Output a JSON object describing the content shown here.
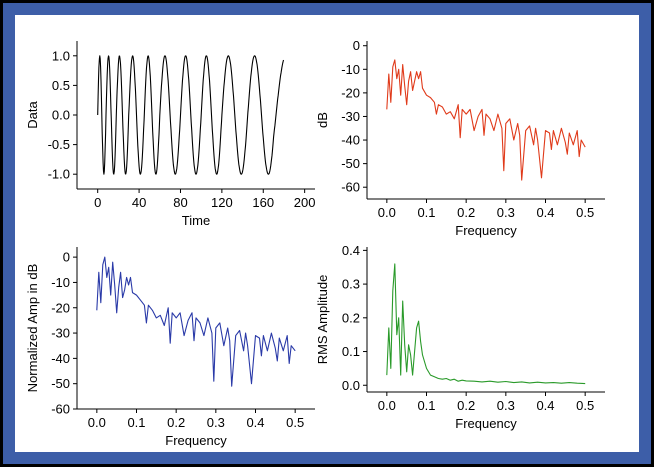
{
  "colors": {
    "frame": "#3d5ea8",
    "background": "#ffffff",
    "axis": "#000000"
  },
  "chart_data": [
    {
      "id": "time",
      "type": "line",
      "title": "",
      "xlabel": "Time",
      "ylabel": "Data",
      "xlim": [
        -20,
        210
      ],
      "ylim": [
        -1.25,
        1.25
      ],
      "xticks": [
        0,
        40,
        80,
        120,
        160,
        200
      ],
      "xtick_labels": [
        "0",
        "40",
        "80",
        "120",
        "160",
        "200"
      ],
      "yticks": [
        -1.0,
        -0.5,
        0.0,
        0.5,
        1.0
      ],
      "ytick_labels": [
        "-1.0",
        "-0.5",
        "0.0",
        "0.5",
        "1.0"
      ],
      "color": "#000000",
      "signal": {
        "description": "chirp, phase values at t = 0..180",
        "t": [
          0,
          8,
          18,
          30,
          45,
          60,
          80,
          100,
          120,
          145,
          170,
          180
        ],
        "phase_cycles": [
          0,
          1,
          2,
          3,
          4,
          5,
          6,
          7,
          8,
          9,
          9.94,
          10.2
        ]
      },
      "grid": false,
      "legend": "none"
    },
    {
      "id": "db",
      "type": "line",
      "title": "",
      "xlabel": "Frequency",
      "ylabel": "dB",
      "xlim": [
        -0.05,
        0.55
      ],
      "ylim": [
        -65,
        2
      ],
      "xticks": [
        0.0,
        0.1,
        0.2,
        0.3,
        0.4,
        0.5
      ],
      "xtick_labels": [
        "0.0",
        "0.1",
        "0.2",
        "0.3",
        "0.4",
        "0.5"
      ],
      "yticks": [
        -60,
        -50,
        -40,
        -30,
        -20,
        -10,
        0
      ],
      "ytick_labels": [
        "-60",
        "-50",
        "-40",
        "-30",
        "-20",
        "-10",
        "0"
      ],
      "color": "#e03a1a",
      "x": [
        0.0,
        0.005,
        0.01,
        0.015,
        0.02,
        0.025,
        0.03,
        0.035,
        0.04,
        0.045,
        0.05,
        0.055,
        0.06,
        0.065,
        0.07,
        0.075,
        0.08,
        0.085,
        0.09,
        0.1,
        0.11,
        0.12,
        0.125,
        0.13,
        0.14,
        0.15,
        0.16,
        0.17,
        0.18,
        0.185,
        0.19,
        0.2,
        0.21,
        0.22,
        0.23,
        0.24,
        0.245,
        0.25,
        0.26,
        0.27,
        0.28,
        0.29,
        0.295,
        0.3,
        0.31,
        0.32,
        0.33,
        0.335,
        0.34,
        0.35,
        0.36,
        0.37,
        0.375,
        0.38,
        0.39,
        0.4,
        0.41,
        0.415,
        0.42,
        0.43,
        0.44,
        0.45,
        0.455,
        0.46,
        0.47,
        0.48,
        0.485,
        0.49,
        0.5
      ],
      "y": [
        -27,
        -12,
        -24,
        -9,
        -6,
        -14,
        -10,
        -21,
        -8,
        -17,
        -25,
        -15,
        -11,
        -19,
        -15,
        -11,
        -14,
        -11,
        -18,
        -21,
        -22,
        -24,
        -29,
        -25,
        -26,
        -29,
        -28,
        -31,
        -25,
        -39,
        -27,
        -29,
        -27,
        -36,
        -30,
        -27,
        -38,
        -29,
        -31,
        -36,
        -29,
        -35,
        -53,
        -33,
        -31,
        -40,
        -33,
        -38,
        -57,
        -36,
        -34,
        -42,
        -35,
        -40,
        -56,
        -36,
        -37,
        -44,
        -36,
        -42,
        -35,
        -41,
        -46,
        -37,
        -42,
        -36,
        -47,
        -40,
        -43
      ],
      "grid": false,
      "legend": "none"
    },
    {
      "id": "norm",
      "type": "line",
      "title": "",
      "xlabel": "Frequency",
      "ylabel": "Normalized Amp in dB",
      "xlim": [
        -0.05,
        0.55
      ],
      "ylim": [
        -60,
        4
      ],
      "xticks": [
        0.0,
        0.1,
        0.2,
        0.3,
        0.4,
        0.5
      ],
      "xtick_labels": [
        "0.0",
        "0.1",
        "0.2",
        "0.3",
        "0.4",
        "0.5"
      ],
      "yticks": [
        -60,
        -50,
        -40,
        -30,
        -20,
        -10,
        0
      ],
      "ytick_labels": [
        "-60",
        "-50",
        "-40",
        "-30",
        "-20",
        "-10",
        "0"
      ],
      "color": "#2a3aa8",
      "x": [
        0.0,
        0.005,
        0.01,
        0.015,
        0.02,
        0.025,
        0.03,
        0.035,
        0.04,
        0.045,
        0.05,
        0.055,
        0.06,
        0.065,
        0.07,
        0.075,
        0.08,
        0.085,
        0.09,
        0.1,
        0.11,
        0.12,
        0.125,
        0.13,
        0.14,
        0.15,
        0.16,
        0.17,
        0.18,
        0.185,
        0.19,
        0.2,
        0.21,
        0.22,
        0.23,
        0.24,
        0.245,
        0.25,
        0.26,
        0.27,
        0.28,
        0.29,
        0.295,
        0.3,
        0.31,
        0.32,
        0.33,
        0.335,
        0.34,
        0.35,
        0.36,
        0.37,
        0.375,
        0.38,
        0.39,
        0.4,
        0.41,
        0.415,
        0.42,
        0.43,
        0.44,
        0.45,
        0.455,
        0.46,
        0.47,
        0.48,
        0.485,
        0.49,
        0.5
      ],
      "y": [
        -21,
        -6,
        -18,
        -3,
        0,
        -8,
        -4,
        -15,
        -2,
        -11,
        -22,
        -12,
        -6,
        -16,
        -13,
        -8,
        -11,
        -8,
        -14,
        -15,
        -17,
        -19,
        -26,
        -19,
        -21,
        -24,
        -23,
        -27,
        -20,
        -34,
        -22,
        -24,
        -22,
        -31,
        -25,
        -22,
        -33,
        -24,
        -26,
        -31,
        -24,
        -30,
        -49,
        -28,
        -26,
        -35,
        -28,
        -33,
        -51,
        -31,
        -29,
        -37,
        -30,
        -35,
        -50,
        -31,
        -32,
        -39,
        -31,
        -37,
        -30,
        -36,
        -41,
        -32,
        -37,
        -31,
        -42,
        -35,
        -37
      ],
      "grid": false,
      "legend": "none"
    },
    {
      "id": "rms",
      "type": "line",
      "title": "",
      "xlabel": "Frequency",
      "ylabel": "RMS Amplitude",
      "xlim": [
        -0.05,
        0.55
      ],
      "ylim": [
        -0.02,
        0.41
      ],
      "xticks": [
        0.0,
        0.1,
        0.2,
        0.3,
        0.4,
        0.5
      ],
      "xtick_labels": [
        "0.0",
        "0.1",
        "0.2",
        "0.3",
        "0.4",
        "0.5"
      ],
      "yticks": [
        0.0,
        0.1,
        0.2,
        0.3,
        0.4
      ],
      "ytick_labels": [
        "0.0",
        "0.1",
        "0.2",
        "0.3",
        "0.4"
      ],
      "color": "#2a9a2a",
      "x": [
        0.0,
        0.005,
        0.01,
        0.015,
        0.02,
        0.025,
        0.03,
        0.035,
        0.04,
        0.045,
        0.05,
        0.055,
        0.06,
        0.065,
        0.07,
        0.075,
        0.08,
        0.085,
        0.09,
        0.1,
        0.11,
        0.12,
        0.13,
        0.14,
        0.15,
        0.16,
        0.17,
        0.18,
        0.19,
        0.2,
        0.22,
        0.24,
        0.26,
        0.28,
        0.3,
        0.32,
        0.34,
        0.36,
        0.38,
        0.4,
        0.42,
        0.44,
        0.46,
        0.48,
        0.5
      ],
      "y": [
        0.03,
        0.17,
        0.05,
        0.28,
        0.36,
        0.15,
        0.2,
        0.03,
        0.25,
        0.12,
        0.04,
        0.12,
        0.09,
        0.03,
        0.1,
        0.17,
        0.19,
        0.13,
        0.09,
        0.05,
        0.03,
        0.025,
        0.02,
        0.018,
        0.02,
        0.015,
        0.018,
        0.012,
        0.015,
        0.013,
        0.012,
        0.01,
        0.012,
        0.009,
        0.011,
        0.008,
        0.01,
        0.007,
        0.009,
        0.007,
        0.008,
        0.006,
        0.008,
        0.006,
        0.005
      ],
      "grid": false,
      "legend": "none"
    }
  ]
}
